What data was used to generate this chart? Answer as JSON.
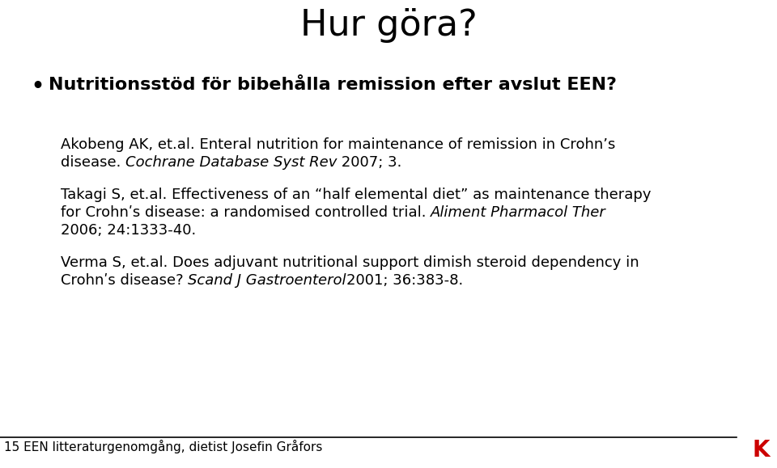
{
  "title": "Hur göra?",
  "background_color": "#ffffff",
  "text_color": "#000000",
  "bullet_char": "•",
  "bullet_text": "Nutritionsstöd för bibehålla remission efter avslut EEN?",
  "ref1_line1": "Akobeng AK, et.al. Enteral nutrition for maintenance of remission in Crohn’s",
  "ref1_line2_pre": "disease. ",
  "ref1_line2_italic": "Cochrane Database Syst Rev",
  "ref1_line2_post": " 2007; 3.",
  "ref2_line1": "Takagi S, et.al. Effectiveness of an “half elemental diet” as maintenance therapy",
  "ref2_line2_pre": "for Crohnʹs disease: a randomised controlled trial. ",
  "ref2_line2_italic": "Aliment Pharmacol Ther",
  "ref2_line3": "2006; 24:1333-40.",
  "ref3_line1": "Verma S, et.al. Does adjuvant nutritional support dimish steroid dependency in",
  "ref3_line2_pre": "Crohnʹs disease? ",
  "ref3_line2_italic": "Scand J Gastroenterol",
  "ref3_line2_post": "2001; 36:383-8.",
  "footer_text": "15 EEN litteraturgenomgång, dietist Josefin Gråfors",
  "logo_text": "K",
  "logo_color": "#cc0000",
  "title_fontsize": 32,
  "bullet_fontsize": 16,
  "ref_fontsize": 13,
  "footer_fontsize": 11
}
